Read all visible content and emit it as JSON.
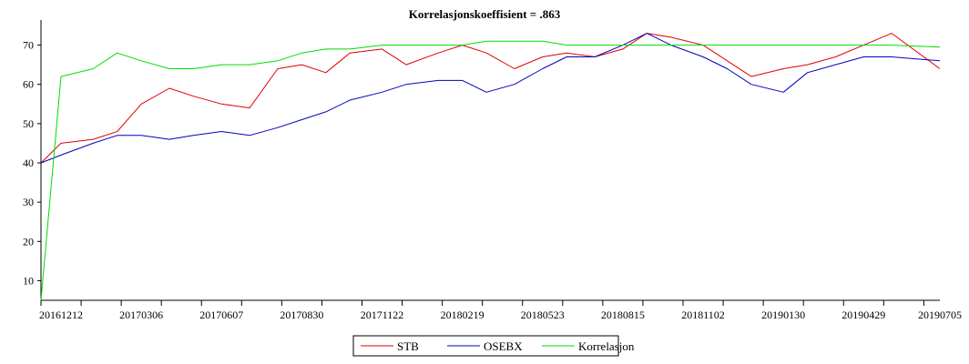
{
  "chart_data": {
    "type": "line",
    "title": "Korrelasjonskoeffisient =  .863",
    "xlabel": "",
    "ylabel": "",
    "ylim": [
      5,
      75
    ],
    "yticks": [
      10,
      20,
      30,
      40,
      50,
      60,
      70
    ],
    "x_tick_labels": [
      "20161212",
      "20170306",
      "20170607",
      "20170830",
      "20171122",
      "20180219",
      "20180523",
      "20180815",
      "20181102",
      "20190130",
      "20190429",
      "20190705"
    ],
    "x_tick_index": [
      0.5,
      2.5,
      4.5,
      6.5,
      8.5,
      10.5,
      12.5,
      14.5,
      16.5,
      18.5,
      20.5,
      22.4
    ],
    "x": [
      "20161115",
      "20161212",
      "20170115",
      "20170210",
      "20170306",
      "20170410",
      "20170505",
      "20170607",
      "20170710",
      "20170805",
      "20170830",
      "20170925",
      "20171020",
      "20171122",
      "20171220",
      "20180125",
      "20180219",
      "20180320",
      "20180420",
      "20180523",
      "20180620",
      "20180720",
      "20180815",
      "20180910",
      "20181005",
      "20181102",
      "20181128",
      "20181220",
      "20190130",
      "20190228",
      "20190329",
      "20190429",
      "20190530",
      "20190705"
    ],
    "x_index": [
      0,
      0.5,
      1.3,
      1.9,
      2.5,
      3.2,
      3.8,
      4.5,
      5.2,
      5.9,
      6.5,
      7.1,
      7.7,
      8.5,
      9.1,
      9.9,
      10.5,
      11.1,
      11.8,
      12.5,
      13.1,
      13.8,
      14.5,
      15.1,
      15.7,
      16.5,
      17.1,
      17.7,
      18.5,
      19.1,
      19.8,
      20.5,
      21.2,
      22.4
    ],
    "series": [
      {
        "name": "STB",
        "color": "#e00000",
        "values": [
          40,
          45,
          46,
          48,
          55,
          59,
          57,
          55,
          54,
          64,
          65,
          63,
          68,
          69,
          65,
          68,
          70,
          68,
          64,
          67,
          68,
          67,
          69,
          73,
          72,
          70,
          66,
          62,
          64,
          65,
          67,
          70,
          73,
          64
        ]
      },
      {
        "name": "OSEBX",
        "color": "#0000c0",
        "values": [
          40,
          42,
          45,
          47,
          47,
          46,
          47,
          48,
          47,
          49,
          51,
          53,
          56,
          58,
          60,
          61,
          61,
          58,
          60,
          64,
          67,
          67,
          70,
          73,
          70,
          67,
          64,
          60,
          58,
          63,
          65,
          67,
          67,
          66
        ]
      },
      {
        "name": "Korrelasjon",
        "color": "#00dd00",
        "values": [
          5,
          62,
          64,
          68,
          66,
          64,
          64,
          65,
          65,
          66,
          68,
          69,
          69,
          70,
          70,
          70,
          70,
          71,
          71,
          71,
          70,
          70,
          70,
          70,
          70,
          70,
          70,
          70,
          70,
          70,
          70,
          70,
          70,
          69.5
        ]
      }
    ],
    "legend_position": "bottom-center",
    "grid": false
  }
}
